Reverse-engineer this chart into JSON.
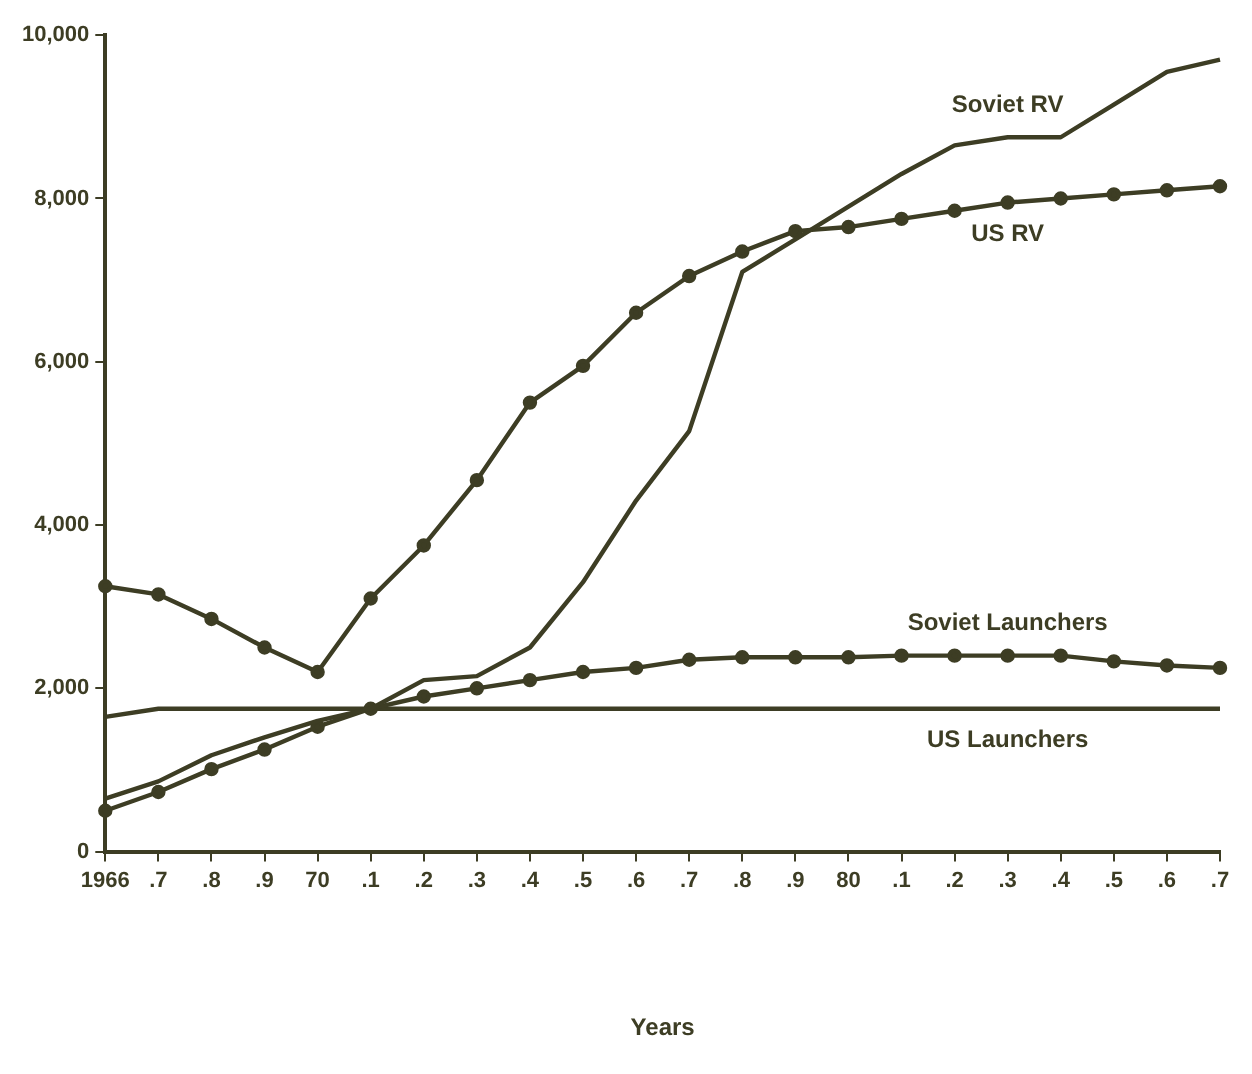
{
  "chart_data": {
    "type": "line",
    "categories": [
      "1966",
      ".7",
      ".8",
      ".9",
      "70",
      ".1",
      ".2",
      ".3",
      ".4",
      ".5",
      ".6",
      ".7",
      ".8",
      ".9",
      "80",
      ".1",
      ".2",
      ".3",
      ".4",
      ".5",
      ".6",
      ".7"
    ],
    "ylim": [
      0,
      10000
    ],
    "yticks": [
      0,
      {
        "value": 2000,
        "label": "2,000"
      },
      {
        "value": 4000,
        "label": "4,000"
      },
      {
        "value": 6000,
        "label": "6,000"
      },
      {
        "value": 8000,
        "label": "8,000"
      },
      {
        "value": 10000,
        "label": "10,000"
      }
    ],
    "grid": false,
    "legend": false,
    "series": [
      {
        "name": "Soviet RV",
        "color": "#3d3d24",
        "marker": "none",
        "values": [
          650,
          860,
          1180,
          1400,
          1600,
          1750,
          2100,
          2150,
          2500,
          3300,
          4300,
          5150,
          7100,
          7500,
          7900,
          8300,
          8650,
          8750,
          8750,
          9150,
          9550,
          9700
        ]
      },
      {
        "name": "US RV",
        "color": "#3d3d24",
        "marker": "circle",
        "values": [
          3250,
          3150,
          2850,
          2500,
          2200,
          3100,
          3750,
          4550,
          5500,
          5950,
          6600,
          7050,
          7350,
          7600,
          7650,
          7750,
          7850,
          7950,
          8000,
          8050,
          8100,
          8150
        ]
      },
      {
        "name": "Soviet Launchers",
        "color": "#3d3d24",
        "marker": "circle",
        "values": [
          500,
          730,
          1010,
          1250,
          1530,
          1750,
          1900,
          2000,
          2100,
          2200,
          2250,
          2350,
          2380,
          2380,
          2380,
          2400,
          2400,
          2400,
          2400,
          2330,
          2280,
          2250
        ]
      },
      {
        "name": "US Launchers",
        "color": "#3d3d24",
        "marker": "none",
        "values": [
          1650,
          1750,
          1750,
          1750,
          1750,
          1750,
          1750,
          1750,
          1750,
          1750,
          1750,
          1750,
          1750,
          1750,
          1750,
          1750,
          1750,
          1750,
          1750,
          1750,
          1750,
          1750
        ]
      }
    ],
    "annotations": [
      "Years"
    ]
  }
}
